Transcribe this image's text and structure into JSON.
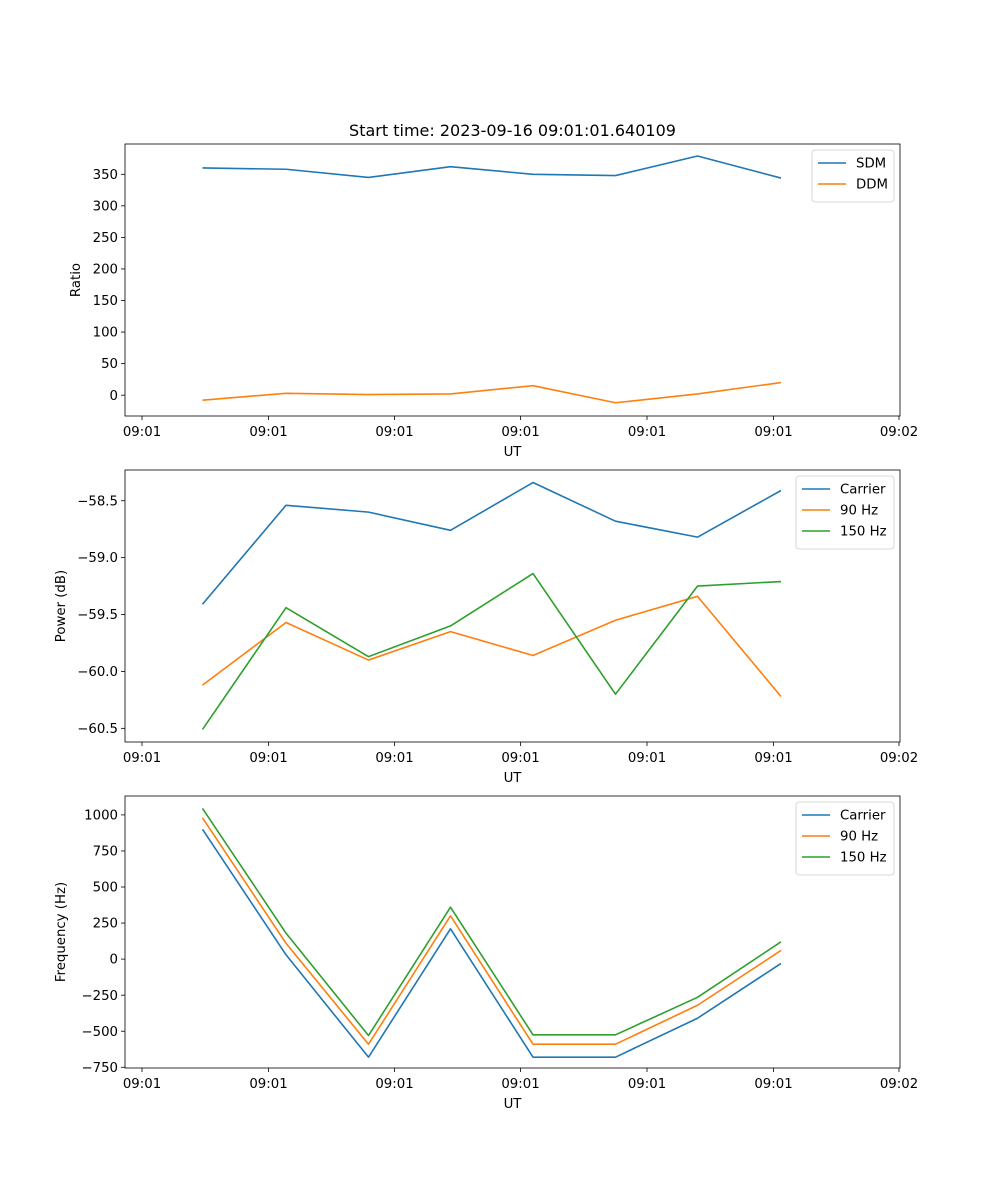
{
  "figure_title": "Start time: 2023-09-16 09:01:01.640109",
  "chart_data": [
    {
      "type": "line",
      "title": "Start time: 2023-09-16 09:01:01.640109",
      "xlabel": "UT",
      "ylabel": "Ratio",
      "x_tick_labels": [
        "09:01",
        "09:01",
        "09:01",
        "09:01",
        "09:01",
        "09:01",
        "09:02"
      ],
      "y_ticks": [
        0,
        50,
        100,
        150,
        200,
        250,
        300,
        350
      ],
      "ylim": [
        -33,
        398
      ],
      "legend_position": "top-right",
      "series": [
        {
          "name": "SDM",
          "color": "#1f77b4",
          "values": [
            360,
            358,
            345,
            362,
            350,
            348,
            379,
            344
          ]
        },
        {
          "name": "DDM",
          "color": "#ff7f0e",
          "values": [
            -8,
            3,
            1,
            2,
            15,
            -12,
            2,
            20
          ]
        }
      ]
    },
    {
      "type": "line",
      "title": "",
      "xlabel": "UT",
      "ylabel": "Power (dB)",
      "x_tick_labels": [
        "09:01",
        "09:01",
        "09:01",
        "09:01",
        "09:01",
        "09:01",
        "09:02"
      ],
      "y_ticks": [
        -60.5,
        -60.0,
        -59.5,
        -59.0,
        -58.5
      ],
      "y_tick_labels": [
        "−60.5",
        "−60.0",
        "−59.5",
        "−59.0",
        "−58.5"
      ],
      "ylim": [
        -60.62,
        -58.23
      ],
      "legend_position": "top-right",
      "series": [
        {
          "name": "Carrier",
          "color": "#1f77b4",
          "values": [
            -59.41,
            -58.54,
            -58.6,
            -58.76,
            -58.34,
            -58.68,
            -58.82,
            -58.41
          ]
        },
        {
          "name": "90 Hz",
          "color": "#ff7f0e",
          "values": [
            -60.12,
            -59.57,
            -59.9,
            -59.65,
            -59.86,
            -59.55,
            -59.34,
            -60.22
          ]
        },
        {
          "name": "150 Hz",
          "color": "#2ca02c",
          "values": [
            -60.51,
            -59.44,
            -59.87,
            -59.6,
            -59.14,
            -60.2,
            -59.25,
            -59.21
          ]
        }
      ]
    },
    {
      "type": "line",
      "title": "",
      "xlabel": "UT",
      "ylabel": "Frequency (Hz)",
      "x_tick_labels": [
        "09:01",
        "09:01",
        "09:01",
        "09:01",
        "09:01",
        "09:01",
        "09:02"
      ],
      "y_ticks": [
        -750,
        -500,
        -250,
        0,
        250,
        500,
        750,
        1000
      ],
      "y_tick_labels": [
        "−750",
        "−500",
        "−250",
        "0",
        "250",
        "500",
        "750",
        "1000"
      ],
      "ylim": [
        -755,
        1131
      ],
      "legend_position": "top-right",
      "series": [
        {
          "name": "Carrier",
          "color": "#1f77b4",
          "values": [
            900,
            30,
            -680,
            210,
            -680,
            -680,
            -410,
            -30
          ]
        },
        {
          "name": "90 Hz",
          "color": "#ff7f0e",
          "values": [
            980,
            110,
            -590,
            300,
            -590,
            -590,
            -320,
            60
          ]
        },
        {
          "name": "150 Hz",
          "color": "#2ca02c",
          "values": [
            1045,
            180,
            -530,
            360,
            -525,
            -525,
            -265,
            120
          ]
        }
      ]
    }
  ]
}
